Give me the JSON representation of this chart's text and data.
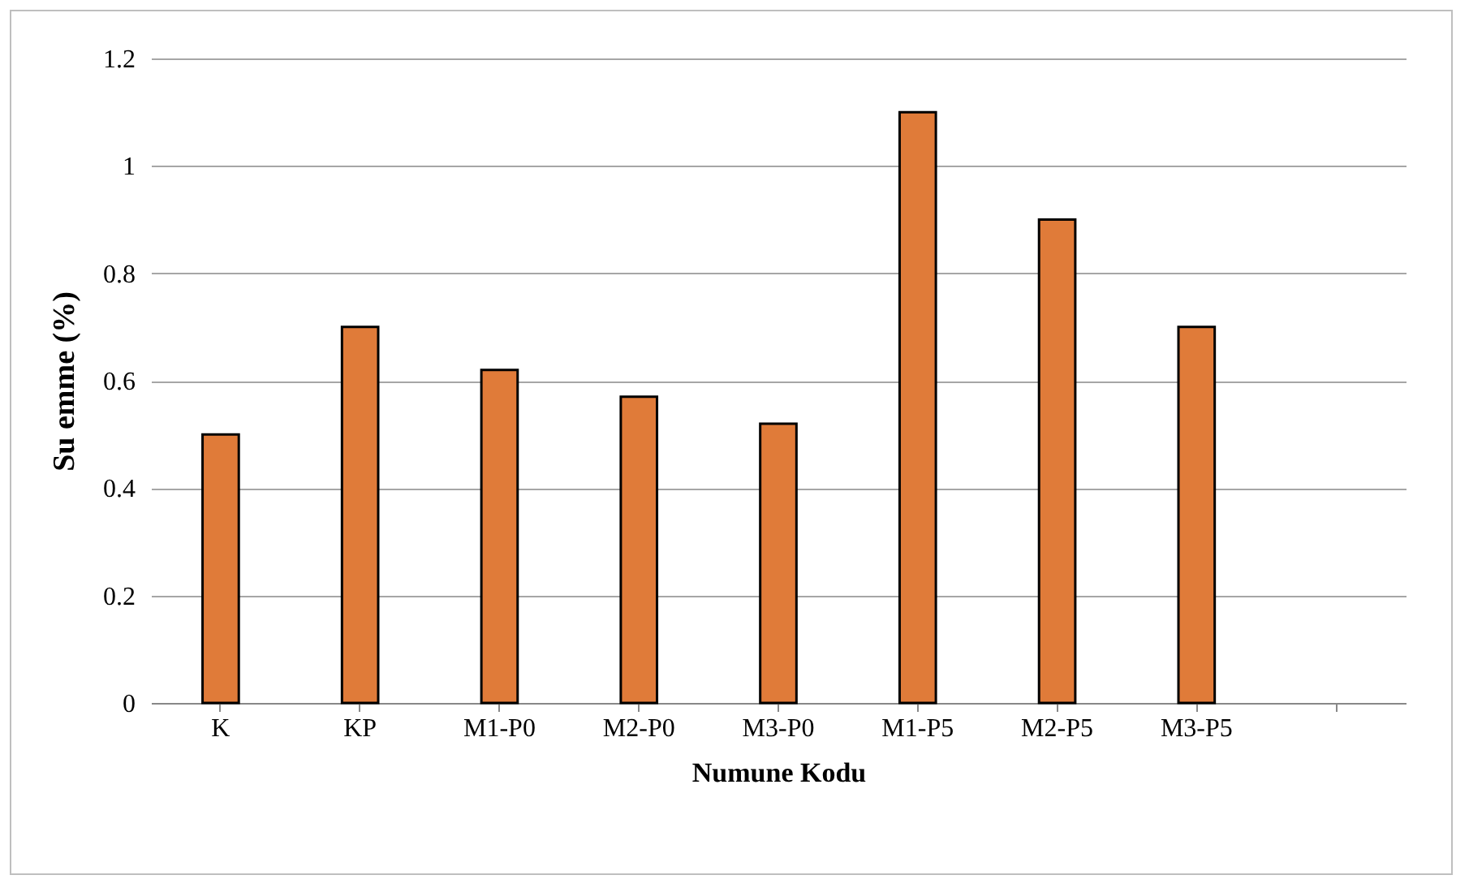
{
  "chart_data": {
    "type": "bar",
    "xlabel": "Numune Kodu",
    "ylabel": "Su emme (%)",
    "categories": [
      "K",
      "KP",
      "M1-P0",
      "M2-P0",
      "M3-P0",
      "M1-P5",
      "M2-P5",
      "M3-P5",
      null
    ],
    "values": [
      0.5,
      0.7,
      0.62,
      0.57,
      0.52,
      1.1,
      0.9,
      0.7,
      null
    ],
    "color": "#e07b39",
    "ylim": [
      0,
      1.2
    ],
    "yticks": [
      0,
      0.2,
      0.4,
      0.6,
      0.8,
      1,
      1.2
    ],
    "grid": "y"
  }
}
